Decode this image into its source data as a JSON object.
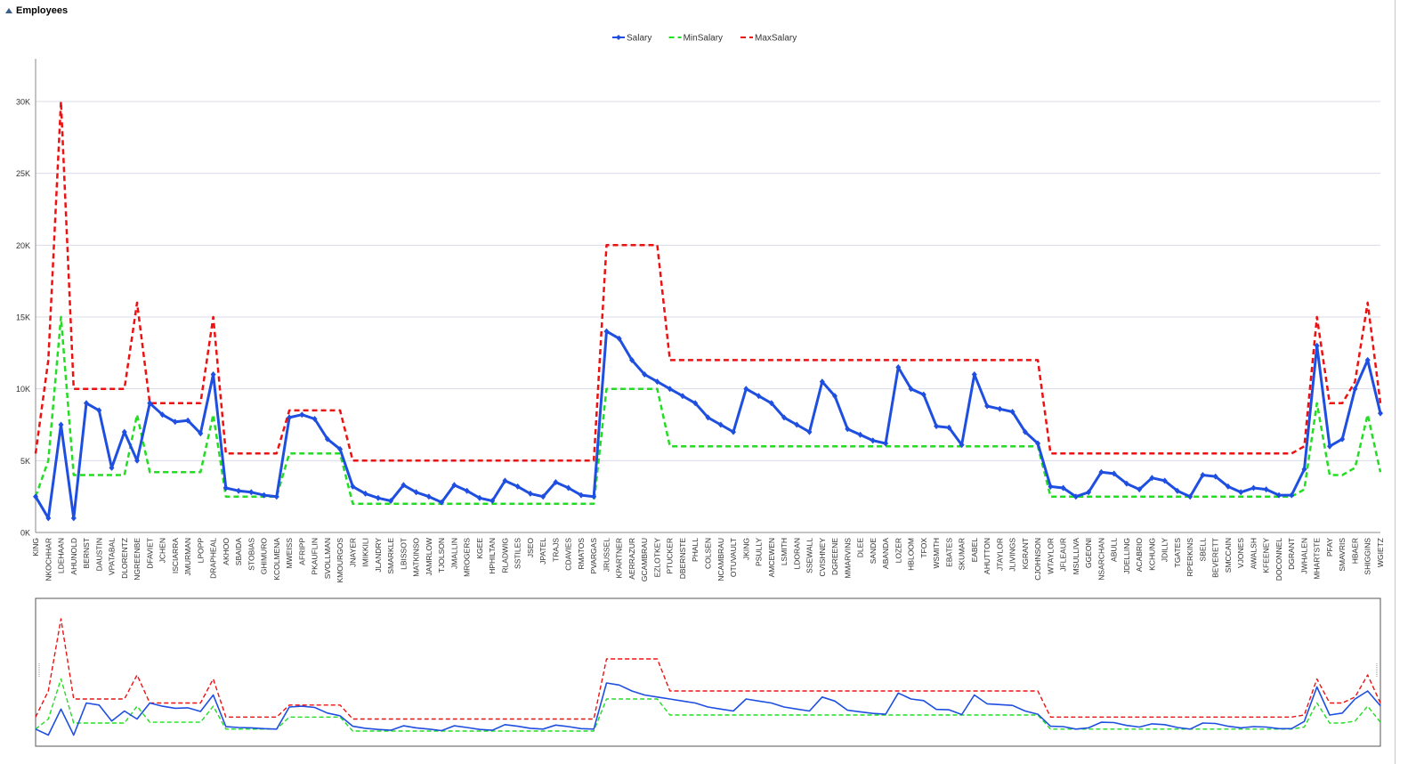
{
  "panel": {
    "title": "Employees"
  },
  "colors": {
    "salary": "#1f4fe0",
    "min": "#22dd22",
    "max": "#ee1111",
    "grid": "#d8dce8",
    "axis": "#8a8a8a"
  },
  "chart_data": {
    "type": "line",
    "title": "",
    "xlabel": "",
    "ylabel": "",
    "ylim": [
      0,
      30000
    ],
    "yticks": [
      0,
      5000,
      10000,
      15000,
      20000,
      25000,
      30000
    ],
    "ytick_labels": [
      "0K",
      "5K",
      "10K",
      "15K",
      "20K",
      "25K",
      "30K"
    ],
    "grid": true,
    "legend": "top-center",
    "categories": [
      "KING",
      "NKOCHHAR",
      "LDEHAAN",
      "AHUNOLD",
      "BERNST",
      "DAUSTIN",
      "VPATABAL",
      "DLORENTZ",
      "NGREENBE",
      "DFAVIET",
      "JCHEN",
      "ISCIARRA",
      "JMURMAN",
      "LPOPP",
      "DRAPHEAL",
      "AKHOO",
      "SBAIDA",
      "STOBIAS",
      "GHIMURO",
      "KCOLMENA",
      "MWEISS",
      "AFRIPP",
      "PKAUFLIN",
      "SVOLLMAN",
      "KMOURGOS",
      "JNAYER",
      "IMIKKILI",
      "JLANDRY",
      "SMARKLE",
      "LBISSOT",
      "MATKINSO",
      "JAMRLOW",
      "TJOLSON",
      "JMALLIN",
      "MROGERS",
      "KGEE",
      "HPHILTAN",
      "RLADWIG",
      "SSTILES",
      "JSEO",
      "JPATEL",
      "TRAJS",
      "CDAVIES",
      "RMATOS",
      "PVARGAS",
      "JRUSSEL",
      "KPARTNER",
      "AERRAZUR",
      "GCAMBRAU",
      "EZLOTKEY",
      "PTUCKER",
      "DBERNSTE",
      "PHALL",
      "COLSEN",
      "NCAMBRAU",
      "OTUVAULT",
      "JKING",
      "PSULLY",
      "AMCEWEN",
      "LSMITH",
      "LDORAN",
      "SSEWALL",
      "CVISHNEY",
      "DGREENE",
      "MMARVINS",
      "DLEE",
      "SANDE",
      "ABANDA",
      "LOZER",
      "HBLOOM",
      "TFOX",
      "WSMITH",
      "EBATES",
      "SKUMAR",
      "EABEL",
      "AHUTTON",
      "JTAYLOR",
      "JLIVINGS",
      "KGRANT",
      "CJOHNSON",
      "WTAYLOR",
      "JFLEAUR",
      "MSULLIVA",
      "GGEONI",
      "NSARCHAN",
      "ABULL",
      "JDELLING",
      "ACABRIO",
      "KCHUNG",
      "JDILLY",
      "TGATES",
      "RPERKINS",
      "SBELL",
      "BEVERETT",
      "SMCCAIN",
      "VJONES",
      "AWALSH",
      "KFEENEY",
      "DOCONNEL",
      "DGRANT",
      "JWHALEN",
      "MHARTSTE",
      "PFAY",
      "SMAVRIS",
      "HBAER",
      "SHIGGINS",
      "WGIETZ"
    ],
    "series": [
      {
        "name": "Salary",
        "values": [
          2500,
          1000,
          7500,
          1000,
          9000,
          8500,
          4500,
          7000,
          5000,
          9000,
          8200,
          7700,
          7800,
          6900,
          11000,
          3100,
          2900,
          2800,
          2600,
          2500,
          8000,
          8200,
          7900,
          6500,
          5800,
          3200,
          2700,
          2400,
          2200,
          3300,
          2800,
          2500,
          2100,
          3300,
          2900,
          2400,
          2200,
          3600,
          3200,
          2700,
          2500,
          3500,
          3100,
          2600,
          2500,
          14000,
          13500,
          12000,
          11000,
          10500,
          10000,
          9500,
          9000,
          8000,
          7500,
          7000,
          10000,
          9500,
          9000,
          8000,
          7500,
          7000,
          10500,
          9500,
          7200,
          6800,
          6400,
          6200,
          11500,
          10000,
          9600,
          7400,
          7300,
          6100,
          11000,
          8800,
          8600,
          8400,
          7000,
          6200,
          3200,
          3100,
          2500,
          2800,
          4200,
          4100,
          3400,
          3000,
          3800,
          3600,
          2900,
          2500,
          4000,
          3900,
          3200,
          2800,
          3100,
          3000,
          2600,
          2600,
          4400,
          13000,
          6000,
          6500,
          10000,
          12000,
          8300
        ]
      },
      {
        "name": "MinSalary",
        "values": [
          2500,
          5000,
          15000,
          4000,
          4000,
          4000,
          4000,
          4000,
          8200,
          4200,
          4200,
          4200,
          4200,
          4200,
          8200,
          2500,
          2500,
          2500,
          2500,
          2500,
          5500,
          5500,
          5500,
          5500,
          5500,
          2000,
          2000,
          2000,
          2000,
          2000,
          2000,
          2000,
          2000,
          2000,
          2000,
          2000,
          2000,
          2000,
          2000,
          2000,
          2000,
          2000,
          2000,
          2000,
          2000,
          10000,
          10000,
          10000,
          10000,
          10000,
          6000,
          6000,
          6000,
          6000,
          6000,
          6000,
          6000,
          6000,
          6000,
          6000,
          6000,
          6000,
          6000,
          6000,
          6000,
          6000,
          6000,
          6000,
          6000,
          6000,
          6000,
          6000,
          6000,
          6000,
          6000,
          6000,
          6000,
          6000,
          6000,
          6000,
          2500,
          2500,
          2500,
          2500,
          2500,
          2500,
          2500,
          2500,
          2500,
          2500,
          2500,
          2500,
          2500,
          2500,
          2500,
          2500,
          2500,
          2500,
          2500,
          2500,
          3000,
          9000,
          4000,
          4000,
          4500,
          8200,
          4200
        ]
      },
      {
        "name": "MaxSalary",
        "values": [
          5500,
          12000,
          30000,
          10000,
          10000,
          10000,
          10000,
          10000,
          16000,
          9000,
          9000,
          9000,
          9000,
          9000,
          15000,
          5500,
          5500,
          5500,
          5500,
          5500,
          8500,
          8500,
          8500,
          8500,
          8500,
          5000,
          5000,
          5000,
          5000,
          5000,
          5000,
          5000,
          5000,
          5000,
          5000,
          5000,
          5000,
          5000,
          5000,
          5000,
          5000,
          5000,
          5000,
          5000,
          5000,
          20000,
          20000,
          20000,
          20000,
          20000,
          12000,
          12000,
          12000,
          12000,
          12000,
          12000,
          12000,
          12000,
          12000,
          12000,
          12000,
          12000,
          12000,
          12000,
          12000,
          12000,
          12000,
          12000,
          12000,
          12000,
          12000,
          12000,
          12000,
          12000,
          12000,
          12000,
          12000,
          12000,
          12000,
          12000,
          5500,
          5500,
          5500,
          5500,
          5500,
          5500,
          5500,
          5500,
          5500,
          5500,
          5500,
          5500,
          5500,
          5500,
          5500,
          5500,
          5500,
          5500,
          5500,
          5500,
          6000,
          15000,
          9000,
          9000,
          10500,
          16000,
          9000
        ]
      }
    ]
  }
}
